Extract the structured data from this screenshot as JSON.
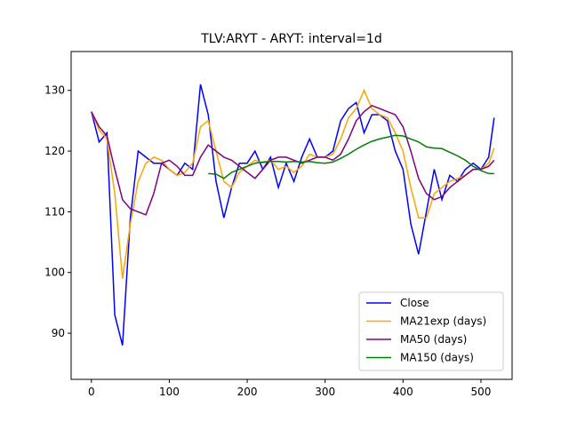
{
  "chart_data": {
    "type": "line",
    "title": "TLV:ARYT - ARYT: interval=1d",
    "x": [
      0,
      10,
      20,
      30,
      40,
      50,
      60,
      70,
      80,
      90,
      100,
      110,
      120,
      130,
      140,
      150,
      160,
      170,
      180,
      190,
      200,
      210,
      220,
      230,
      240,
      250,
      260,
      270,
      280,
      290,
      300,
      310,
      320,
      330,
      340,
      350,
      360,
      370,
      380,
      390,
      400,
      410,
      420,
      430,
      440,
      450,
      460,
      470,
      480,
      490,
      500,
      510,
      517
    ],
    "series": [
      {
        "name": "Close",
        "color": "#0000ff",
        "values": [
          126.5,
          121.5,
          123,
          93,
          88,
          109,
          120,
          119,
          118,
          118,
          117,
          116,
          118,
          117,
          131,
          126,
          115,
          109,
          114,
          118,
          118,
          120,
          117,
          119,
          114,
          118,
          115,
          119,
          122,
          119,
          119,
          120,
          125,
          127,
          128,
          123,
          126,
          126,
          125,
          120,
          117,
          108,
          103,
          110,
          117,
          112,
          116,
          115,
          117,
          118,
          117,
          119,
          125.5
        ]
      },
      {
        "name": "MA21exp (days)",
        "color": "#ffa500",
        "values": [
          126.5,
          123.5,
          122,
          113,
          99,
          108,
          115,
          118,
          119,
          118.5,
          117,
          116,
          116.5,
          118,
          124,
          125,
          120,
          115,
          114,
          116.5,
          117.5,
          118.5,
          118,
          118.5,
          117,
          117.5,
          116.5,
          117.5,
          119.5,
          119,
          119,
          119.5,
          122,
          125.5,
          127,
          130,
          127,
          126,
          125.5,
          123,
          120,
          114,
          109,
          109,
          113,
          114,
          115,
          115.5,
          116,
          117,
          117,
          118,
          120.5
        ]
      },
      {
        "name": "MA50 (days)",
        "color": "#800080",
        "values": [
          126.5,
          124,
          122.5,
          117,
          112,
          110.5,
          110,
          109.5,
          113,
          118,
          118.5,
          117.5,
          116,
          116,
          119,
          121,
          120,
          119,
          118.5,
          117.5,
          116.5,
          115.5,
          117,
          118.5,
          119,
          119,
          118.5,
          118,
          118.5,
          119,
          119,
          118.5,
          119.5,
          122,
          125,
          126.5,
          127.5,
          127,
          126.5,
          126,
          124,
          120,
          115.5,
          113,
          112,
          112.5,
          114,
          115,
          116,
          117,
          117,
          117.5,
          118.5
        ]
      },
      {
        "name": "MA150 (days)",
        "color": "#008000",
        "values": [
          null,
          null,
          null,
          null,
          null,
          null,
          null,
          null,
          null,
          null,
          null,
          null,
          null,
          null,
          null,
          116.3,
          116.2,
          115.5,
          116.5,
          117,
          117.5,
          118,
          118.2,
          118.3,
          118.3,
          118.2,
          118.3,
          118.2,
          118.3,
          118.1,
          118,
          118.2,
          118.8,
          119.5,
          120.3,
          121,
          121.6,
          122,
          122.3,
          122.6,
          122.5,
          122,
          121.5,
          120.7,
          120.5,
          120.4,
          119.8,
          119.2,
          118.5,
          117.5,
          116.8,
          116.3,
          116.3
        ]
      }
    ],
    "xlim": [
      -26,
      540
    ],
    "ylim": [
      82.4,
      136.4
    ],
    "xticks": [
      0,
      100,
      200,
      300,
      400,
      500
    ],
    "yticks": [
      90,
      100,
      110,
      120,
      130
    ],
    "grid": false,
    "legend": "lower right"
  }
}
